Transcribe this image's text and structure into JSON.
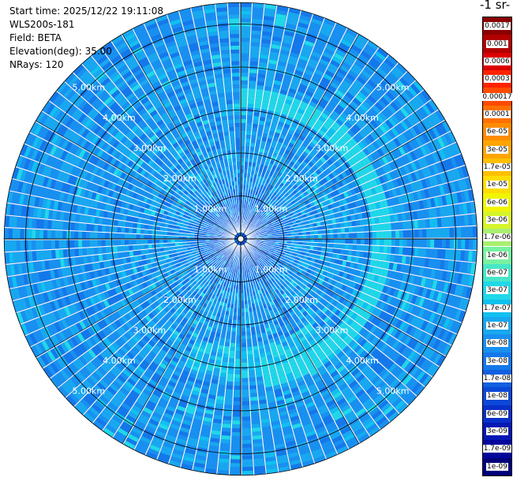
{
  "info": {
    "start_time": "Start time: 2025/12/22 19:11:08",
    "instrument": "WLS200s-181",
    "field": "Field: BETA",
    "elevation": "Elevation(deg): 35.00",
    "nrays": "NRays: 120"
  },
  "colorbar": {
    "unit_label": "-1 sr-",
    "ticks": [
      "0.0017",
      "0.001",
      "0.0006",
      "0.0003",
      "0.00017",
      "0.0001",
      "6e-05",
      "3e-05",
      "1.7e-05",
      "1e-05",
      "6e-06",
      "3e-06",
      "1.7e-06",
      "1e-06",
      "6e-07",
      "3e-07",
      "1.7e-07",
      "1e-07",
      "6e-08",
      "3e-08",
      "1.7e-08",
      "1e-08",
      "6e-09",
      "3e-09",
      "1.7e-09",
      "1e-09"
    ],
    "colors": [
      "#8b0000",
      "#b20000",
      "#dd0000",
      "#ff2200",
      "#ff4a00",
      "#ff7000",
      "#ff8c00",
      "#ffa500",
      "#ffc000",
      "#ffdd00",
      "#f2f500",
      "#d6f52a",
      "#a8f070",
      "#78f2a0",
      "#48e6c8",
      "#20d8e8",
      "#10c0f0",
      "#18a8f0",
      "#1890f0",
      "#1478ea",
      "#1060e0",
      "#0c48d8",
      "#0830c8",
      "#0418b4",
      "#02069c",
      "#00007a"
    ]
  },
  "chart_data": {
    "type": "polar-ppi",
    "field": "BETA",
    "elevation_deg": 35.0,
    "nrays": 120,
    "range_km": [
      0,
      5.5
    ],
    "rings_km": [
      1,
      2,
      3,
      4,
      5
    ],
    "ring_labels": [
      "1.00km",
      "2.00km",
      "3.00km",
      "4.00km",
      "5.00km"
    ],
    "color_scale": "log",
    "value_range": [
      1e-09,
      0.0017
    ],
    "features": [
      {
        "description": "enhanced backscatter arc",
        "azimuth_deg": [
          0,
          170
        ],
        "range_km": [
          3.0,
          3.5
        ]
      },
      {
        "description": "weak arc",
        "azimuth_deg": [
          140,
          205
        ],
        "range_km": [
          2.5,
          3.2
        ]
      }
    ]
  }
}
